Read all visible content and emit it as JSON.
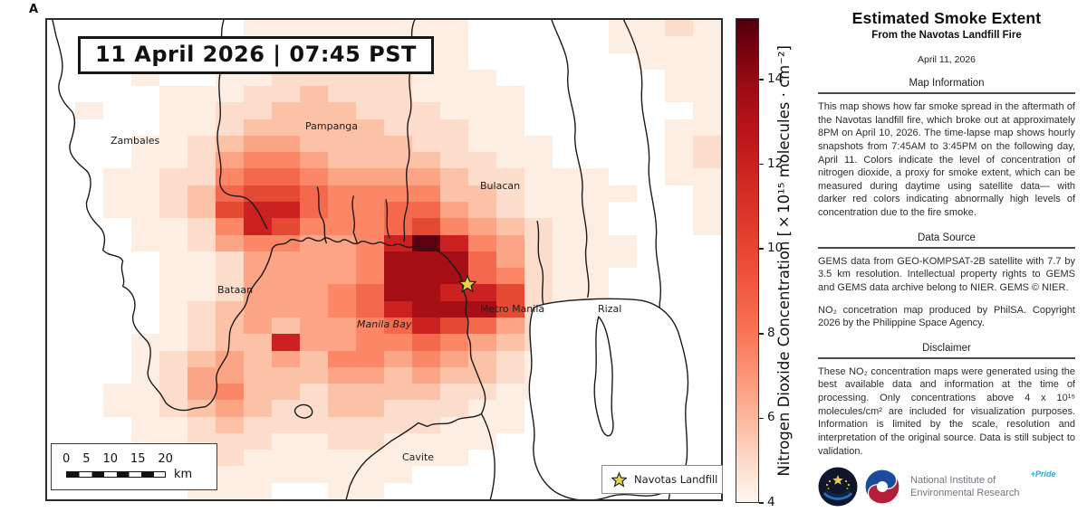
{
  "corner_mark": "A",
  "map": {
    "datetime_label": "11 April 2026 | 07:45 PST",
    "labels": {
      "zambales": "Zambales",
      "pampanga": "Pampanga",
      "bulacan": "Bulacan",
      "bataan": "Bataan",
      "manila_bay": "Manila Bay",
      "metro_manila": "Metro Manila",
      "rizal": "Rizal",
      "cavite": "Cavite"
    },
    "scalebar": {
      "ticks": [
        "0",
        "5",
        "10",
        "15",
        "20"
      ],
      "unit": "km"
    },
    "legend": {
      "marker": "star-icon",
      "label": "Navotas Landfill"
    }
  },
  "colorbar": {
    "label": "Nitrogen Dioxide Concentration [×10¹⁵ molecules · cm⁻²]",
    "ticks": [
      14,
      12,
      10,
      8,
      6,
      4
    ],
    "axis_min": 4,
    "axis_max": 15.45
  },
  "chart_data": {
    "type": "heatmap",
    "title": "NO₂ concentration proxy for smoke extent, 11 April 2026 07:45 PST",
    "units": "×10¹⁵ molecules · cm⁻²",
    "value_note": "grid values are palette indices 0–10 mapping ~4 (white) to ~15.5 (dark red) ×10¹⁵ molecules/cm²",
    "palette": [
      "#ffffff",
      "#fdeee4",
      "#fcdccb",
      "#fcc2a8",
      "#fca486",
      "#fb8767",
      "#f4694e",
      "#e44a33",
      "#cb2120",
      "#a50f15",
      "#5f0010"
    ],
    "grid": [
      [
        0,
        0,
        0,
        0,
        0,
        0,
        0,
        1,
        1,
        1,
        1,
        1,
        1,
        1,
        1,
        0,
        0,
        0,
        0,
        0,
        1,
        1,
        2,
        1
      ],
      [
        0,
        0,
        0,
        0,
        0,
        1,
        1,
        1,
        1,
        1,
        2,
        1,
        1,
        1,
        1,
        0,
        0,
        0,
        0,
        0,
        1,
        1,
        1,
        1
      ],
      [
        0,
        0,
        0,
        0,
        0,
        0,
        1,
        1,
        2,
        2,
        2,
        2,
        1,
        1,
        1,
        0,
        0,
        0,
        0,
        0,
        0,
        1,
        1,
        1
      ],
      [
        0,
        0,
        0,
        1,
        0,
        0,
        1,
        1,
        2,
        2,
        2,
        2,
        2,
        1,
        1,
        1,
        0,
        0,
        0,
        0,
        0,
        0,
        1,
        1
      ],
      [
        0,
        0,
        0,
        0,
        1,
        1,
        1,
        2,
        2,
        3,
        2,
        2,
        2,
        1,
        1,
        1,
        1,
        0,
        0,
        0,
        0,
        0,
        1,
        1
      ],
      [
        0,
        1,
        0,
        0,
        1,
        1,
        2,
        2,
        3,
        3,
        3,
        2,
        2,
        2,
        1,
        1,
        1,
        0,
        0,
        0,
        0,
        0,
        0,
        1
      ],
      [
        0,
        0,
        0,
        0,
        1,
        1,
        2,
        3,
        3,
        3,
        3,
        3,
        2,
        2,
        2,
        1,
        1,
        0,
        0,
        0,
        0,
        0,
        1,
        1
      ],
      [
        0,
        0,
        0,
        1,
        1,
        2,
        3,
        4,
        4,
        3,
        3,
        3,
        3,
        2,
        2,
        1,
        1,
        1,
        0,
        0,
        0,
        0,
        1,
        2
      ],
      [
        0,
        0,
        0,
        1,
        1,
        2,
        4,
        5,
        5,
        4,
        3,
        3,
        3,
        3,
        2,
        2,
        1,
        1,
        0,
        0,
        0,
        0,
        1,
        2
      ],
      [
        0,
        0,
        1,
        1,
        2,
        2,
        5,
        6,
        6,
        5,
        4,
        4,
        4,
        4,
        3,
        2,
        2,
        1,
        1,
        1,
        0,
        0,
        1,
        1
      ],
      [
        0,
        0,
        1,
        1,
        2,
        3,
        6,
        7,
        7,
        6,
        5,
        5,
        5,
        5,
        3,
        3,
        2,
        1,
        1,
        1,
        1,
        0,
        0,
        1
      ],
      [
        0,
        0,
        1,
        1,
        2,
        3,
        7,
        8,
        8,
        6,
        5,
        5,
        6,
        6,
        4,
        3,
        2,
        1,
        1,
        1,
        0,
        0,
        0,
        1
      ],
      [
        0,
        0,
        0,
        1,
        1,
        2,
        5,
        8,
        7,
        5,
        5,
        5,
        6,
        7,
        5,
        4,
        3,
        2,
        1,
        1,
        0,
        0,
        0,
        1
      ],
      [
        0,
        0,
        0,
        1,
        1,
        2,
        4,
        5,
        5,
        4,
        4,
        5,
        8,
        10,
        8,
        5,
        4,
        2,
        1,
        1,
        1,
        0,
        0,
        0
      ],
      [
        0,
        0,
        0,
        0,
        1,
        1,
        2,
        4,
        4,
        4,
        4,
        5,
        9,
        9,
        9,
        6,
        4,
        2,
        1,
        1,
        1,
        0,
        0,
        0
      ],
      [
        0,
        0,
        0,
        0,
        1,
        1,
        2,
        4,
        4,
        4,
        4,
        5,
        9,
        9,
        9,
        6,
        5,
        2,
        1,
        1,
        0,
        0,
        0,
        0
      ],
      [
        0,
        0,
        0,
        0,
        1,
        1,
        2,
        4,
        4,
        4,
        5,
        6,
        9,
        9,
        8,
        8,
        7,
        2,
        1,
        1,
        0,
        0,
        0,
        0
      ],
      [
        0,
        0,
        0,
        0,
        1,
        2,
        3,
        4,
        4,
        4,
        5,
        6,
        8,
        9,
        9,
        9,
        7,
        2,
        1,
        1,
        1,
        0,
        0,
        0
      ],
      [
        0,
        0,
        0,
        0,
        1,
        2,
        3,
        4,
        3,
        4,
        4,
        5,
        6,
        8,
        7,
        6,
        4,
        2,
        1,
        1,
        0,
        0,
        0,
        0
      ],
      [
        0,
        0,
        0,
        1,
        1,
        2,
        3,
        3,
        8,
        4,
        4,
        5,
        5,
        6,
        5,
        4,
        3,
        2,
        1,
        1,
        0,
        0,
        0,
        0
      ],
      [
        0,
        0,
        0,
        1,
        2,
        3,
        4,
        3,
        4,
        3,
        5,
        5,
        4,
        5,
        4,
        3,
        2,
        1,
        1,
        0,
        0,
        0,
        0,
        0
      ],
      [
        0,
        0,
        0,
        1,
        2,
        4,
        4,
        3,
        3,
        3,
        4,
        4,
        3,
        4,
        3,
        3,
        2,
        1,
        1,
        1,
        0,
        0,
        0,
        0
      ],
      [
        0,
        0,
        1,
        1,
        2,
        4,
        5,
        3,
        3,
        2,
        3,
        3,
        3,
        3,
        2,
        2,
        1,
        1,
        0,
        0,
        0,
        0,
        0,
        0
      ],
      [
        0,
        0,
        1,
        1,
        2,
        3,
        4,
        3,
        2,
        2,
        3,
        3,
        2,
        2,
        2,
        1,
        1,
        0,
        0,
        0,
        0,
        0,
        0,
        0
      ],
      [
        0,
        0,
        0,
        1,
        1,
        2,
        3,
        2,
        2,
        2,
        2,
        2,
        2,
        2,
        1,
        1,
        1,
        0,
        0,
        0,
        0,
        0,
        0,
        0
      ],
      [
        0,
        0,
        0,
        1,
        1,
        2,
        2,
        2,
        1,
        1,
        2,
        2,
        1,
        1,
        1,
        1,
        0,
        0,
        0,
        0,
        0,
        0,
        0,
        0
      ],
      [
        0,
        0,
        0,
        0,
        1,
        1,
        2,
        1,
        1,
        1,
        1,
        1,
        1,
        1,
        1,
        0,
        0,
        0,
        0,
        0,
        0,
        0,
        0,
        0
      ],
      [
        0,
        0,
        0,
        0,
        1,
        1,
        1,
        1,
        1,
        1,
        1,
        1,
        1,
        0,
        0,
        0,
        0,
        0,
        0,
        0,
        0,
        0,
        0,
        0
      ],
      [
        0,
        0,
        0,
        0,
        0,
        1,
        1,
        1,
        0,
        0,
        1,
        1,
        0,
        0,
        0,
        0,
        0,
        0,
        0,
        0,
        0,
        0,
        0,
        0
      ]
    ]
  },
  "panel": {
    "title": "Estimated Smoke Extent",
    "subtitle": "From the Navotas Landfill Fire",
    "date": "April 11, 2026",
    "sections": {
      "map_information": {
        "heading": "Map Information",
        "body": "This map shows how far smoke spread in the aftermath of the Navotas landfill fire, which broke out at approximately 8PM on April 10, 2026. The time-lapse map shows hourly snapshots from 7:45AM to 3:45PM on the following day, April 11. Colors indicate the level of concentration of nitrogen dioxide, a proxy for smoke extent, which can be measured during daytime using satellite data— with darker red colors indicating abnormally high levels of concentration due to the fire smoke."
      },
      "data_source": {
        "heading": "Data Source",
        "body1": "GEMS data from GEO-KOMPSAT-2B satellite with 7.7 by 3.5 km resolution. Intellectual property rights to GEMS and GEMS data archive belong to NIER. GEMS © NIER.",
        "body2": "NO₂ concetration map produced by PhilSA. Copyright 2026 by the Philippine Space Agency."
      },
      "disclaimer": {
        "heading": "Disclaimer",
        "body": "These NO₂ concentration maps were generated using the best available data and information at the time of processing. Only concentrations above 4 x 10¹⁵ molecules/cm² are included for visualization purposes. Information is limited by the scale, resolution and interpretation of the original source. Data is still subject to validation."
      }
    },
    "footer": {
      "org_line1": "National Institute of",
      "org_line2": "Environmental Research",
      "pride": "+Pride"
    }
  }
}
